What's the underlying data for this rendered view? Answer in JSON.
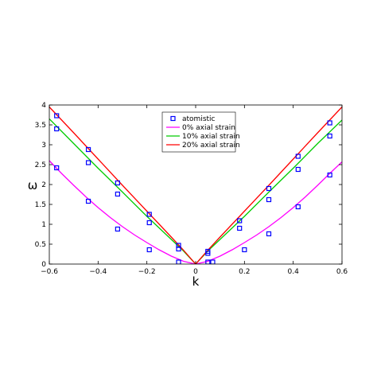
{
  "chart_data": {
    "type": "line",
    "title": "",
    "xlabel": "k",
    "ylabel": "ω",
    "xlim": [
      -0.6,
      0.6
    ],
    "ylim": [
      0,
      4
    ],
    "xticks": [
      -0.6,
      -0.4,
      -0.2,
      0,
      0.2,
      0.4,
      0.6
    ],
    "xtick_labels": [
      "−0.6",
      "−0.4",
      "−0.2",
      "0",
      "0.2",
      "0.4",
      "0.6"
    ],
    "yticks": [
      0,
      0.5,
      1,
      1.5,
      2,
      2.5,
      3,
      3.5,
      4
    ],
    "ytick_labels": [
      "0",
      "0.5",
      "1",
      "1.5",
      "2",
      "2.5",
      "3",
      "3.5",
      "4"
    ],
    "grid": false,
    "legend_position": "top-center",
    "series": [
      {
        "name": "0%  axial strain",
        "kind": "line",
        "color": "#ff00ff",
        "x": [
          -0.6,
          -0.55,
          -0.5,
          -0.45,
          -0.4,
          -0.35,
          -0.3,
          -0.25,
          -0.2,
          -0.15,
          -0.1,
          -0.05,
          0,
          0.05,
          0.1,
          0.15,
          0.2,
          0.25,
          0.3,
          0.35,
          0.4,
          0.45,
          0.5,
          0.55,
          0.6
        ],
        "y": [
          2.6,
          2.28,
          1.98,
          1.69,
          1.42,
          1.17,
          0.94,
          0.73,
          0.54,
          0.36,
          0.2,
          0.07,
          0.0,
          0.07,
          0.2,
          0.36,
          0.54,
          0.73,
          0.94,
          1.17,
          1.42,
          1.69,
          1.98,
          2.28,
          2.57
        ]
      },
      {
        "name": "10% axial strain",
        "kind": "line",
        "color": "#00cc00",
        "x": [
          -0.6,
          -0.5,
          -0.4,
          -0.3,
          -0.2,
          -0.1,
          -0.05,
          0,
          0.05,
          0.1,
          0.2,
          0.3,
          0.4,
          0.5,
          0.6
        ],
        "y": [
          3.65,
          3.03,
          2.41,
          1.81,
          1.2,
          0.62,
          0.33,
          0.0,
          0.33,
          0.62,
          1.2,
          1.81,
          2.41,
          3.03,
          3.62
        ]
      },
      {
        "name": "20% axial strain",
        "kind": "line",
        "color": "#ff0000",
        "x": [
          -0.6,
          -0.5,
          -0.4,
          -0.3,
          -0.2,
          -0.1,
          -0.05,
          0,
          0.05,
          0.1,
          0.2,
          0.3,
          0.4,
          0.5,
          0.6
        ],
        "y": [
          3.95,
          3.3,
          2.64,
          1.98,
          1.33,
          0.68,
          0.35,
          0.0,
          0.35,
          0.68,
          1.33,
          1.98,
          2.64,
          3.3,
          3.95
        ]
      },
      {
        "name": "atomistic",
        "kind": "markers",
        "color": "#0000ff",
        "x": [
          -0.57,
          -0.44,
          -0.32,
          -0.19,
          -0.07,
          0.05,
          0.07,
          0.2,
          0.3,
          0.42,
          0.55,
          -0.57,
          -0.44,
          -0.32,
          -0.19,
          -0.07,
          0.05,
          0.18,
          0.3,
          0.42,
          0.55,
          -0.57,
          -0.44,
          -0.32,
          -0.19,
          -0.07,
          0.05,
          0.18,
          0.3,
          0.42,
          0.55
        ],
        "y": [
          2.42,
          1.58,
          0.88,
          0.36,
          0.05,
          0.05,
          0.05,
          0.36,
          0.76,
          1.44,
          2.24,
          3.4,
          2.55,
          1.76,
          1.04,
          0.38,
          0.27,
          0.9,
          1.62,
          2.38,
          3.22,
          3.73,
          2.88,
          2.04,
          1.25,
          0.47,
          0.32,
          1.09,
          1.9,
          2.71,
          3.55
        ]
      }
    ]
  }
}
